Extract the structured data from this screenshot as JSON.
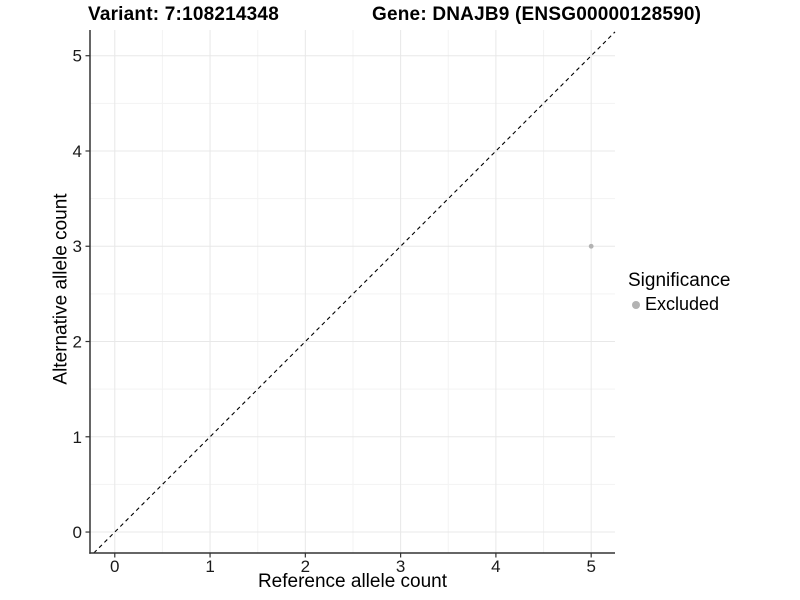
{
  "chart_data": {
    "type": "scatter",
    "titles": {
      "left": "Variant: 7:108214348",
      "right": "Gene: DNAJB9 (ENSG00000128590)"
    },
    "xlabel": "Reference allele count",
    "ylabel": "Alternative allele count",
    "xlim": [
      -0.26,
      5.25
    ],
    "ylim": [
      -0.22,
      5.27
    ],
    "x_tick_labels": [
      "0",
      "1",
      "2",
      "3",
      "4",
      "5"
    ],
    "x_tick_values": [
      0,
      1,
      2,
      3,
      4,
      5
    ],
    "y_tick_labels": [
      "0",
      "1",
      "2",
      "3",
      "4",
      "5"
    ],
    "y_tick_values": [
      0,
      1,
      2,
      3,
      4,
      5
    ],
    "minor_tick_values": [
      0.5,
      1.5,
      2.5,
      3.5,
      4.5
    ],
    "grid": {
      "major_color": "#e8e8e8",
      "minor_color": "#f3f3f3"
    },
    "axis_color": "#333333",
    "tick_label_color": "#1a1a1a",
    "reference_line": {
      "slope": 1,
      "intercept": 0,
      "style": "dashed",
      "color": "#000000"
    },
    "series": [
      {
        "name": "Excluded",
        "color": "#b3b3b3",
        "point_radius": 2.4,
        "points": [
          {
            "x": 5,
            "y": 3
          }
        ]
      }
    ],
    "legend": {
      "title": "Significance",
      "position": "right",
      "entries": [
        {
          "label": "Excluded",
          "color": "#b3b3b3"
        }
      ]
    }
  }
}
